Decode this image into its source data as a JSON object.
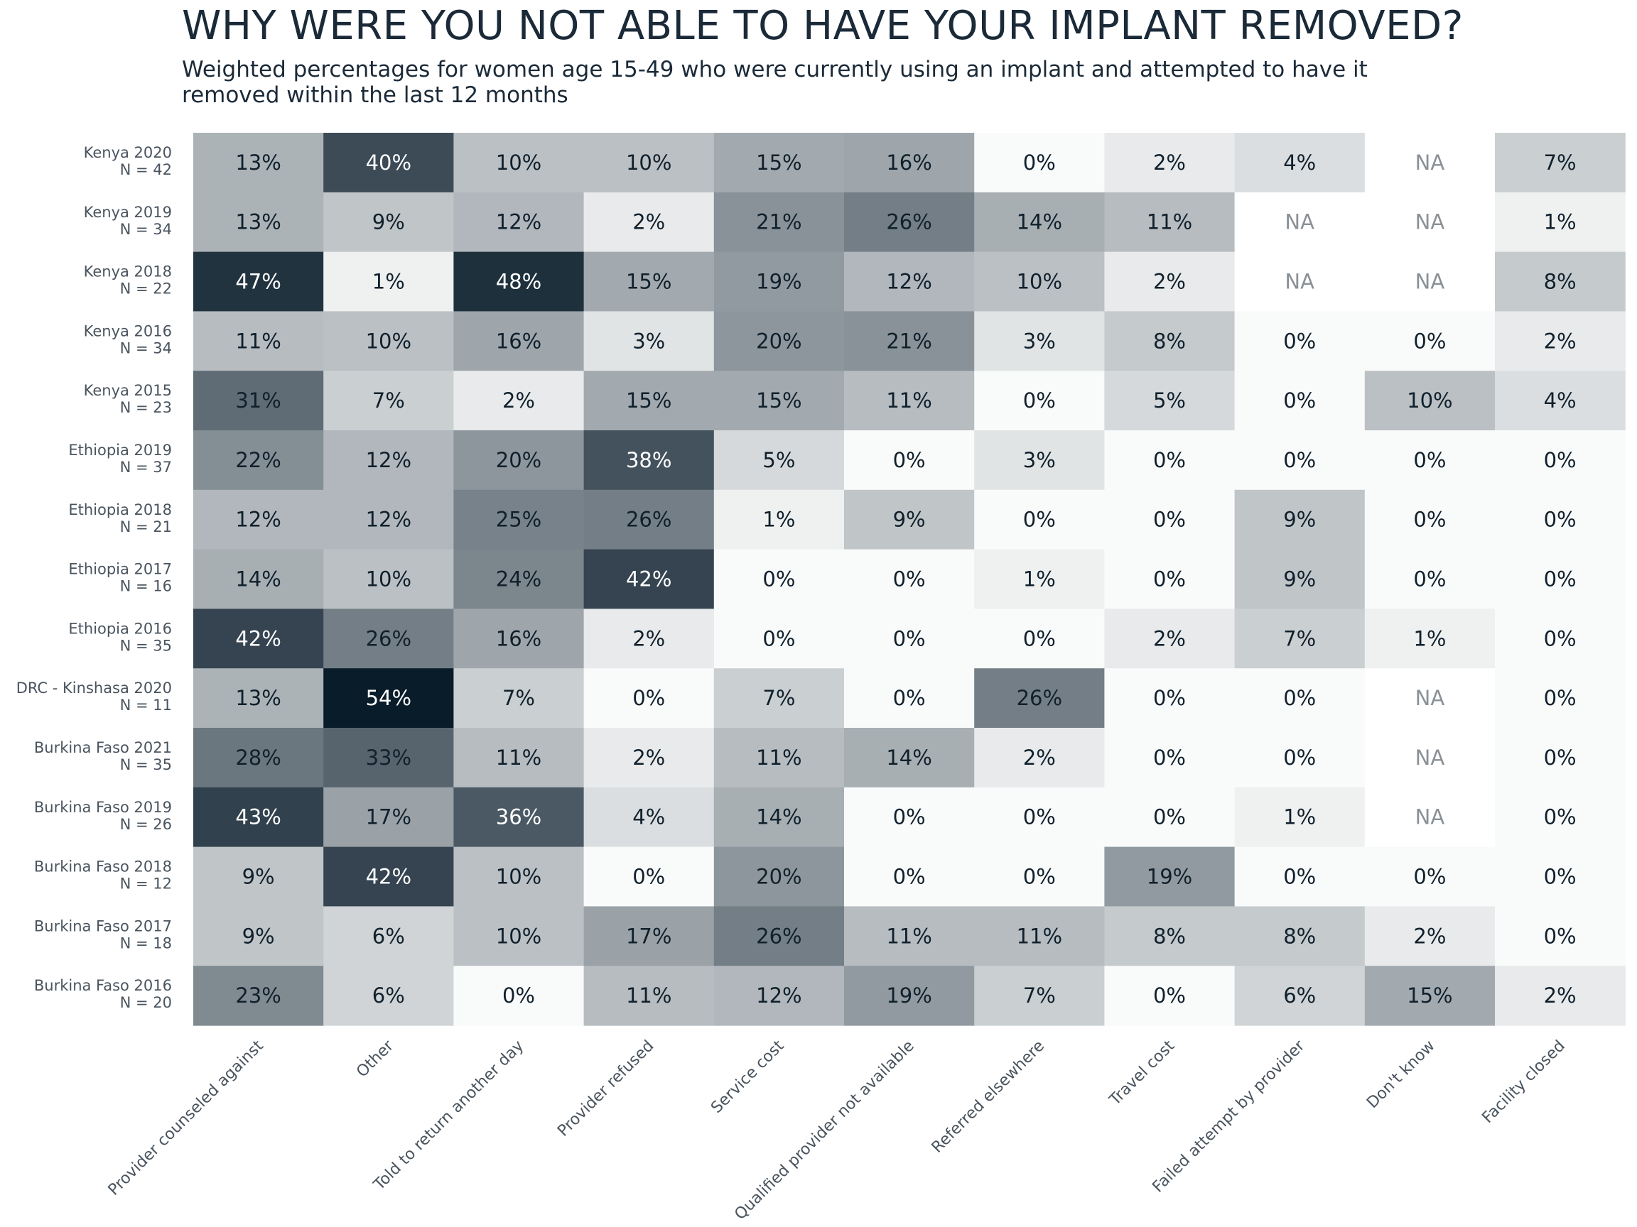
{
  "chart_data": {
    "type": "heatmap",
    "title": "WHY WERE YOU NOT ABLE TO HAVE YOUR IMPLANT REMOVED?",
    "subtitle": "Weighted percentages for women age 15-49 who were currently using an implant and attempted to have it removed within the last 12 months",
    "columns": [
      "Provider counseled against",
      "Other",
      "Told to return another day",
      "Provider refused",
      "Service cost",
      "Qualified provider not available",
      "Referred elsewhere",
      "Travel cost",
      "Failed attempt by provider",
      "Don't know",
      "Facility closed"
    ],
    "rows": [
      {
        "label": "Kenya 2020",
        "n": "N = 42",
        "values": [
          13,
          40,
          10,
          10,
          15,
          16,
          0,
          2,
          4,
          null,
          7
        ]
      },
      {
        "label": "Kenya 2019",
        "n": "N = 34",
        "values": [
          13,
          9,
          12,
          2,
          21,
          26,
          14,
          11,
          null,
          null,
          1
        ]
      },
      {
        "label": "Kenya 2018",
        "n": "N = 22",
        "values": [
          47,
          1,
          48,
          15,
          19,
          12,
          10,
          2,
          null,
          null,
          8
        ]
      },
      {
        "label": "Kenya 2016",
        "n": "N = 34",
        "values": [
          11,
          10,
          16,
          3,
          20,
          21,
          3,
          8,
          0,
          0,
          2
        ]
      },
      {
        "label": "Kenya 2015",
        "n": "N = 23",
        "values": [
          31,
          7,
          2,
          15,
          15,
          11,
          0,
          5,
          0,
          10,
          4
        ]
      },
      {
        "label": "Ethiopia 2019",
        "n": "N = 37",
        "values": [
          22,
          12,
          20,
          38,
          5,
          0,
          3,
          0,
          0,
          0,
          0
        ]
      },
      {
        "label": "Ethiopia 2018",
        "n": "N = 21",
        "values": [
          12,
          12,
          25,
          26,
          1,
          9,
          0,
          0,
          9,
          0,
          0
        ]
      },
      {
        "label": "Ethiopia 2017",
        "n": "N = 16",
        "values": [
          14,
          10,
          24,
          42,
          0,
          0,
          1,
          0,
          9,
          0,
          0
        ]
      },
      {
        "label": "Ethiopia 2016",
        "n": "N = 35",
        "values": [
          42,
          26,
          16,
          2,
          0,
          0,
          0,
          2,
          7,
          1,
          0
        ]
      },
      {
        "label": "DRC - Kinshasa 2020",
        "n": "N = 11",
        "values": [
          13,
          54,
          7,
          0,
          7,
          0,
          26,
          0,
          0,
          null,
          0
        ]
      },
      {
        "label": "Burkina Faso 2021",
        "n": "N = 35",
        "values": [
          28,
          33,
          11,
          2,
          11,
          14,
          2,
          0,
          0,
          null,
          0
        ]
      },
      {
        "label": "Burkina Faso 2019",
        "n": "N = 26",
        "values": [
          43,
          17,
          36,
          4,
          14,
          0,
          0,
          0,
          1,
          null,
          0
        ]
      },
      {
        "label": "Burkina Faso 2018",
        "n": "N = 12",
        "values": [
          9,
          42,
          10,
          0,
          20,
          0,
          0,
          19,
          0,
          0,
          0
        ]
      },
      {
        "label": "Burkina Faso 2017",
        "n": "N = 18",
        "values": [
          9,
          6,
          10,
          17,
          26,
          11,
          11,
          8,
          8,
          2,
          0
        ]
      },
      {
        "label": "Burkina Faso 2016",
        "n": "N = 20",
        "values": [
          23,
          6,
          0,
          11,
          12,
          19,
          7,
          0,
          6,
          15,
          2
        ]
      }
    ],
    "value_suffix": "%",
    "na_label": "NA",
    "color_scale": {
      "low": "#f9fafa",
      "high": "#091c2a",
      "max_value": 54
    },
    "text_colors": {
      "dark": "#10202c",
      "light": "#ffffff",
      "na": "#8a9096"
    }
  }
}
